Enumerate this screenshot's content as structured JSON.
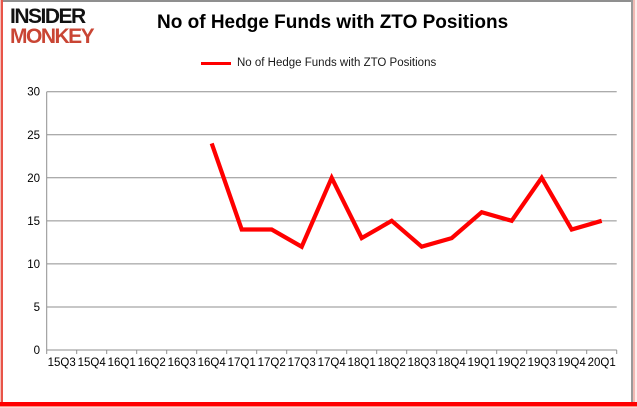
{
  "logo": {
    "line1": "INSIDER",
    "line2": "MONKEY",
    "monkey_color": "#c94534"
  },
  "title": "No of Hedge Funds with ZTO Positions",
  "legend": {
    "label": "No of Hedge Funds with ZTO Positions",
    "swatch_color": "#ff0000"
  },
  "chart_data": {
    "type": "line",
    "title": "No of Hedge Funds with ZTO Positions",
    "categories": [
      "15Q3",
      "15Q4",
      "16Q1",
      "16Q2",
      "16Q3",
      "16Q4",
      "17Q1",
      "17Q2",
      "17Q3",
      "17Q4",
      "18Q1",
      "18Q2",
      "18Q3",
      "18Q4",
      "19Q1",
      "19Q2",
      "19Q3",
      "19Q4",
      "20Q1"
    ],
    "series": [
      {
        "name": "No of Hedge Funds with ZTO Positions",
        "color": "#ff0000",
        "values": [
          null,
          null,
          null,
          null,
          null,
          24,
          14,
          14,
          12,
          20,
          13,
          15,
          12,
          13,
          16,
          15,
          20,
          14,
          15
        ]
      }
    ],
    "ylim": [
      0,
      30
    ],
    "yticks": [
      0,
      5,
      10,
      15,
      20,
      25,
      30
    ],
    "grid": "horizontal",
    "legend_position": "top-center"
  },
  "colors": {
    "line": "#ff0000",
    "gridline": "#8f8f8f",
    "axis_text": "#000000",
    "border_bottom": "#ff0000",
    "border_gray": "#9a9a9a"
  }
}
